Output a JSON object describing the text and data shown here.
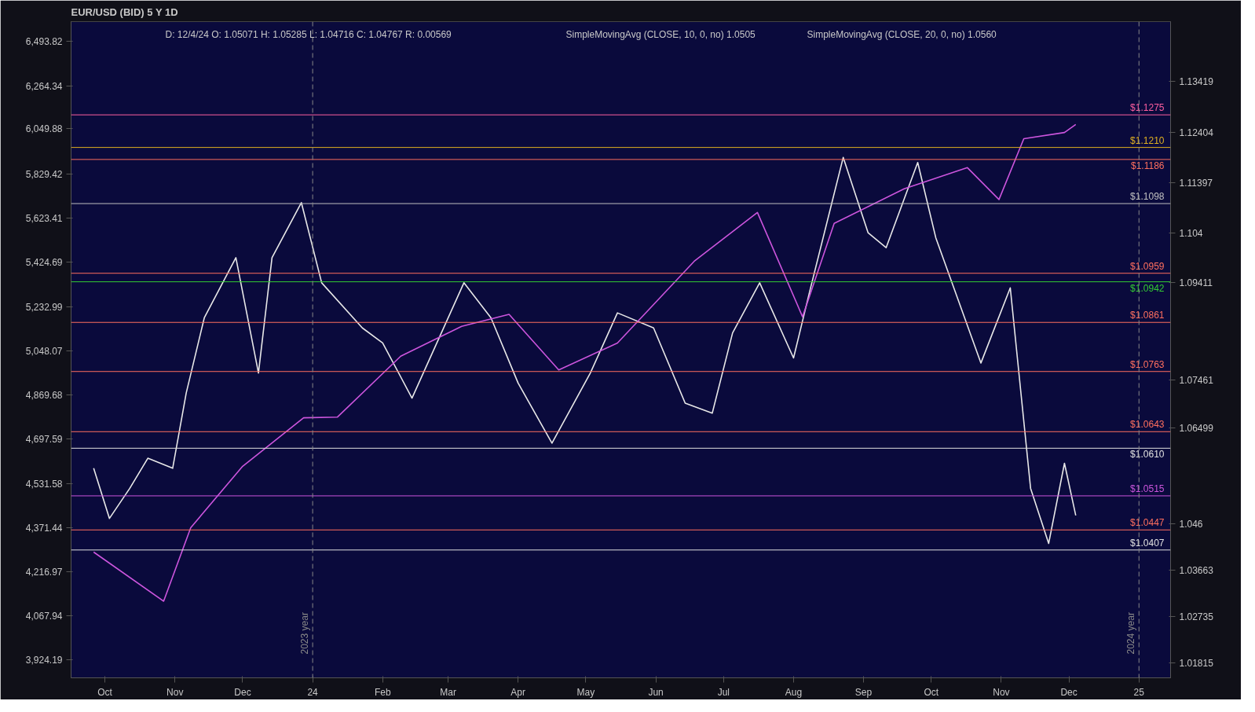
{
  "chart_data": {
    "type": "line",
    "title": "EUR/USD (BID) 5 Y 1D",
    "annotations": [
      "D: 12/4/24  O: 1.05071  H: 1.05285  L: 1.04716  C: 1.04767  R: 0.00569",
      "SimpleMovingAvg (CLOSE, 10, 0, no) 1.0505",
      "SimpleMovingAvg (CLOSE, 20, 0, no) 1.0560"
    ],
    "series": [
      {
        "color": "#e8e8e8",
        "x": [
          "2023-09-26",
          "2023-10-03",
          "2023-10-12",
          "2023-10-20",
          "2023-10-31",
          "2023-11-06",
          "2023-11-14",
          "2023-11-28",
          "2023-12-08",
          "2023-12-14",
          "2023-12-27",
          "2024-01-05",
          "2024-01-23",
          "2024-02-01",
          "2024-02-14",
          "2024-03-08",
          "2024-03-20",
          "2024-04-01",
          "2024-04-16",
          "2024-05-03",
          "2024-05-15",
          "2024-05-31",
          "2024-06-14",
          "2024-06-26",
          "2024-07-05",
          "2024-07-17",
          "2024-08-01",
          "2024-08-08",
          "2024-08-23",
          "2024-09-03",
          "2024-09-11",
          "2024-09-25",
          "2024-10-03",
          "2024-10-23",
          "2024-11-05",
          "2024-11-14",
          "2024-11-22",
          "2024-11-29",
          "2024-12-04"
        ],
        "values": [
          1.057,
          1.047,
          1.053,
          1.059,
          1.057,
          1.072,
          1.087,
          1.099,
          1.076,
          1.099,
          1.11,
          1.094,
          1.085,
          1.082,
          1.071,
          1.094,
          1.087,
          1.074,
          1.062,
          1.076,
          1.088,
          1.085,
          1.07,
          1.068,
          1.084,
          1.094,
          1.079,
          1.092,
          1.119,
          1.104,
          1.101,
          1.118,
          1.103,
          1.078,
          1.093,
          1.053,
          1.042,
          1.058,
          1.0476
        ]
      },
      {
        "color": "#cc55dd",
        "axis": "y2",
        "x": [
          "2023-09-26",
          "2023-10-27",
          "2023-11-08",
          "2023-12-01",
          "2023-12-28",
          "2024-01-12",
          "2024-02-09",
          "2024-03-07",
          "2024-03-28",
          "2024-04-19",
          "2024-05-15",
          "2024-06-18",
          "2024-07-16",
          "2024-08-05",
          "2024-08-19",
          "2024-09-19",
          "2024-10-17",
          "2024-10-31",
          "2024-11-11",
          "2024-11-29",
          "2024-12-04"
        ],
        "values": [
          4285,
          4117,
          4371,
          4595,
          4780,
          4783,
          5026,
          5150,
          5200,
          4970,
          5080,
          5430,
          5650,
          5190,
          5600,
          5760,
          5860,
          5710,
          6000,
          6030,
          6070
        ]
      }
    ],
    "xlim": [
      "2023-09-16",
      "2025-01-15"
    ],
    "xticks": [
      {
        "value": "2023-10-01",
        "label": "Oct"
      },
      {
        "value": "2023-11-01",
        "label": "Nov"
      },
      {
        "value": "2023-12-01",
        "label": "Dec"
      },
      {
        "value": "2024-01-01",
        "label": "24"
      },
      {
        "value": "2024-02-01",
        "label": "Feb"
      },
      {
        "value": "2024-03-01",
        "label": "Mar"
      },
      {
        "value": "2024-04-01",
        "label": "Apr"
      },
      {
        "value": "2024-05-01",
        "label": "May"
      },
      {
        "value": "2024-06-01",
        "label": "Jun"
      },
      {
        "value": "2024-07-01",
        "label": "Jul"
      },
      {
        "value": "2024-08-01",
        "label": "Aug"
      },
      {
        "value": "2024-09-01",
        "label": "Sep"
      },
      {
        "value": "2024-10-01",
        "label": "Oct"
      },
      {
        "value": "2024-11-01",
        "label": "Nov"
      },
      {
        "value": "2024-12-01",
        "label": "Dec"
      },
      {
        "value": "2025-01-01",
        "label": "25"
      }
    ],
    "ylim": [
      1.0152,
      1.1461
    ],
    "yticks": [
      1.01815,
      1.02735,
      1.03663,
      1.046,
      1.06499,
      1.07461,
      1.09411,
      1.104,
      1.11397,
      1.12404,
      1.13419
    ],
    "y2lim": [
      3868,
      6600
    ],
    "log": "y2",
    "y2ticks": [
      {
        "value": 3924.19,
        "label": "3,924.19"
      },
      {
        "value": 4067.94,
        "label": "4,067.94"
      },
      {
        "value": 4216.97,
        "label": "4,216.97"
      },
      {
        "value": 4371.44,
        "label": "4,371.44"
      },
      {
        "value": 4531.58,
        "label": "4,531.58"
      },
      {
        "value": 4697.59,
        "label": "4,697.59"
      },
      {
        "value": 4869.68,
        "label": "4,869.68"
      },
      {
        "value": 5048.07,
        "label": "5,048.07"
      },
      {
        "value": 5232.99,
        "label": "5,232.99"
      },
      {
        "value": 5424.69,
        "label": "5,424.69"
      },
      {
        "value": 5623.41,
        "label": "5,623.41"
      },
      {
        "value": 5829.42,
        "label": "5,829.42"
      },
      {
        "value": 6049.88,
        "label": "6,049.88"
      },
      {
        "value": 6264.34,
        "label": "6,264.34"
      },
      {
        "value": 6493.82,
        "label": "6,493.82"
      }
    ],
    "ref_lines": [
      {
        "axis": "y",
        "value": 1.1275,
        "label": "$1.1275",
        "color": "#ff5fa0"
      },
      {
        "axis": "y",
        "value": 1.121,
        "label": "$1.1210",
        "color": "#e0b020"
      },
      {
        "axis": "y",
        "value": 1.1186,
        "label": "$1.1186",
        "color": "#ff6f5e"
      },
      {
        "axis": "y",
        "value": 1.1098,
        "label": "$1.1098",
        "color": "#c0c0c0"
      },
      {
        "axis": "y",
        "value": 1.0959,
        "label": "$1.0959",
        "color": "#ff6f5e"
      },
      {
        "axis": "y",
        "value": 1.0942,
        "label": "$1.0942",
        "color": "#33cc33"
      },
      {
        "axis": "y",
        "value": 1.0861,
        "label": "$1.0861",
        "color": "#ff6f5e"
      },
      {
        "axis": "y",
        "value": 1.0763,
        "label": "$1.0763",
        "color": "#ff6f5e"
      },
      {
        "axis": "y",
        "value": 1.0643,
        "label": "$1.0643",
        "color": "#ff6f5e"
      },
      {
        "axis": "y",
        "value": 1.061,
        "label": "$1.0610",
        "color": "#e0e0e0"
      },
      {
        "axis": "y",
        "value": 1.0515,
        "label": "$1.0515",
        "color": "#cc55dd"
      },
      {
        "axis": "y",
        "value": 1.0447,
        "label": "$1.0447",
        "color": "#ff6f5e"
      },
      {
        "axis": "y",
        "value": 1.0407,
        "label": "$1.0407",
        "color": "#e0e0e0"
      },
      {
        "axis": "x",
        "value": "2024-01-01",
        "label": "2023 year",
        "color": "#888888",
        "line_style": "dashed"
      },
      {
        "axis": "x",
        "value": "2025-01-01",
        "label": "2024 year",
        "color": "#888888",
        "line_style": "dashed"
      }
    ]
  }
}
